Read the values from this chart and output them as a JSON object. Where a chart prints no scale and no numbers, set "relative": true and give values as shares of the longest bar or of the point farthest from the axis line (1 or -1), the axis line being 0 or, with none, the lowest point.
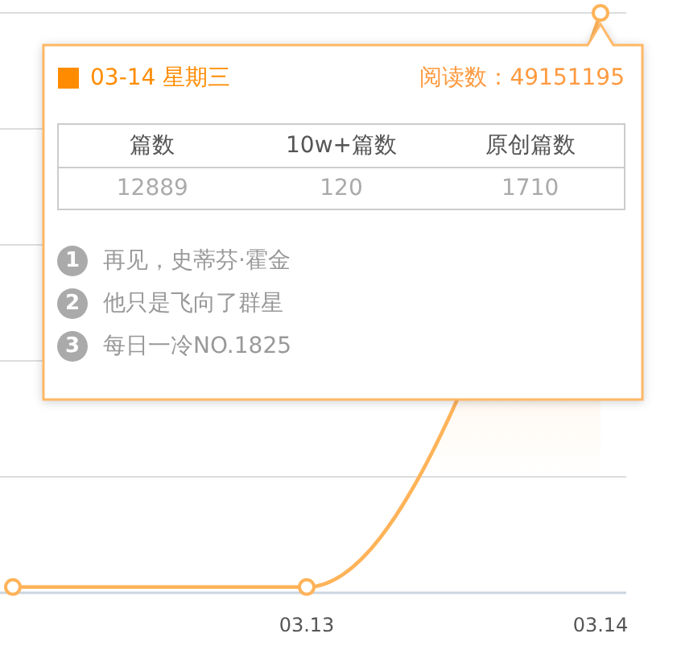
{
  "chart_data": [
    {
      "type": "area",
      "categories": [
        null,
        "03.13",
        "03.14"
      ],
      "values": [
        0.01,
        0.01,
        1
      ],
      "color": "#ffb359",
      "relative": true,
      "grid": "y",
      "marker": "circle",
      "annotations": [
        "03-14 星期三",
        "阅读数：49151195"
      ]
    },
    {
      "type": "other",
      "categories": [
        "篇数",
        "10w+篇数",
        "原创篇数"
      ],
      "values": [
        12889,
        120,
        1710
      ],
      "data_labels": true
    },
    {
      "type": "other",
      "categories": [
        "再见，史蒂芬·霍金",
        "他只是飞向了群星",
        "每日一冷NO.1825"
      ],
      "values": [
        1,
        2,
        3
      ],
      "data_labels": true
    }
  ]
}
